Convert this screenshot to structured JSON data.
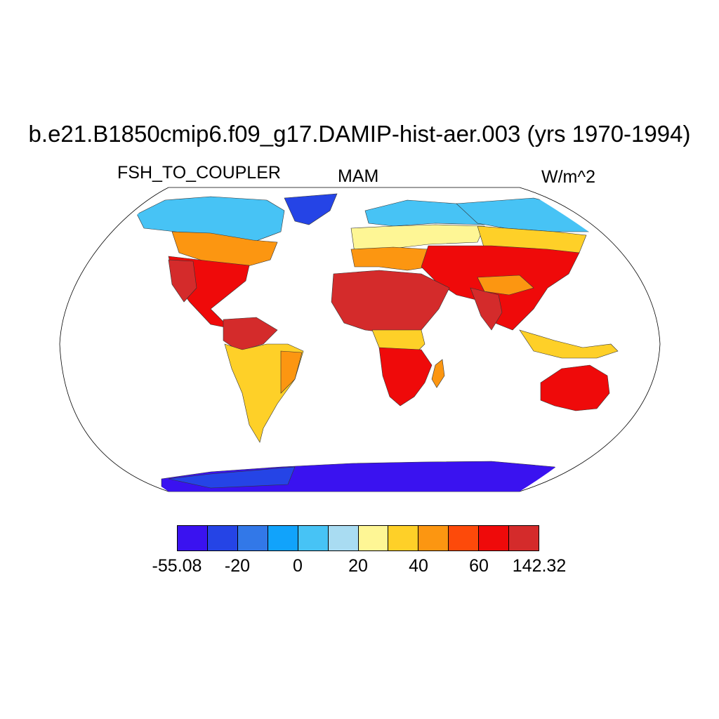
{
  "title": "b.e21.B1850cmip6.f09_g17.DAMIP-hist-aer.003 (yrs 1970-1994)",
  "variable": "FSH_TO_COUPLER",
  "season": "MAM",
  "units": "W/m^2",
  "colorbar": {
    "colors": [
      "#3a12f0",
      "#2544e6",
      "#3278e8",
      "#11a3fb",
      "#47c3f5",
      "#a9dcf2",
      "#fef695",
      "#fed028",
      "#fc9611",
      "#fd4a0a",
      "#ef0a0a",
      "#d42b2b"
    ],
    "labels": [
      {
        "text": "-55.08",
        "boundary": 0
      },
      {
        "text": "-20",
        "boundary": 2
      },
      {
        "text": "0",
        "boundary": 4
      },
      {
        "text": "20",
        "boundary": 6
      },
      {
        "text": "40",
        "boundary": 8
      },
      {
        "text": "60",
        "boundary": 10
      },
      {
        "text": "142.32",
        "boundary": 12
      }
    ]
  },
  "projection": "Robinson"
}
